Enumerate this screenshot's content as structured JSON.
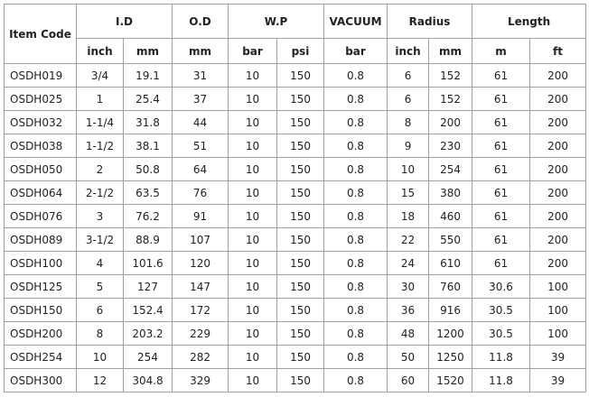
{
  "header": {
    "groups": [
      "Item Code",
      "I.D",
      "O.D",
      "W.P",
      "VACUUM",
      "Radius",
      "Length"
    ],
    "units": [
      "inch",
      "mm",
      "mm",
      "bar",
      "psi",
      "bar",
      "inch",
      "mm",
      "m",
      "ft"
    ]
  },
  "rows": [
    [
      "OSDH019",
      "3/4",
      19.1,
      31,
      10,
      150,
      0.8,
      6,
      152,
      61,
      200
    ],
    [
      "OSDH025",
      "1",
      25.4,
      37,
      10,
      150,
      0.8,
      6,
      152,
      61,
      200
    ],
    [
      "OSDH032",
      "1-1/4",
      31.8,
      44,
      10,
      150,
      0.8,
      8,
      200,
      61,
      200
    ],
    [
      "OSDH038",
      "1-1/2",
      38.1,
      51,
      10,
      150,
      0.8,
      9,
      230,
      61,
      200
    ],
    [
      "OSDH050",
      "2",
      50.8,
      64,
      10,
      150,
      0.8,
      10,
      254,
      61,
      200
    ],
    [
      "OSDH064",
      "2-1/2",
      63.5,
      76,
      10,
      150,
      0.8,
      15,
      380,
      61,
      200
    ],
    [
      "OSDH076",
      "3",
      76.2,
      91,
      10,
      150,
      0.8,
      18,
      460,
      61,
      200
    ],
    [
      "OSDH089",
      "3-1/2",
      88.9,
      107,
      10,
      150,
      0.8,
      22,
      550,
      61,
      200
    ],
    [
      "OSDH100",
      "4",
      101.6,
      120,
      10,
      150,
      0.8,
      24,
      610,
      61,
      200
    ],
    [
      "OSDH125",
      "5",
      127,
      147,
      10,
      150,
      0.8,
      30,
      760,
      30.6,
      100
    ],
    [
      "OSDH150",
      "6",
      152.4,
      172,
      10,
      150,
      0.8,
      36,
      916,
      30.5,
      100
    ],
    [
      "OSDH200",
      "8",
      203.2,
      229,
      10,
      150,
      0.8,
      48,
      1200,
      30.5,
      100
    ],
    [
      "OSDH254",
      "10",
      254,
      282,
      10,
      150,
      0.8,
      50,
      1250,
      11.8,
      39
    ],
    [
      "OSDH300",
      "12",
      304.8,
      329,
      10,
      150,
      0.8,
      60,
      1520,
      11.8,
      39
    ]
  ]
}
